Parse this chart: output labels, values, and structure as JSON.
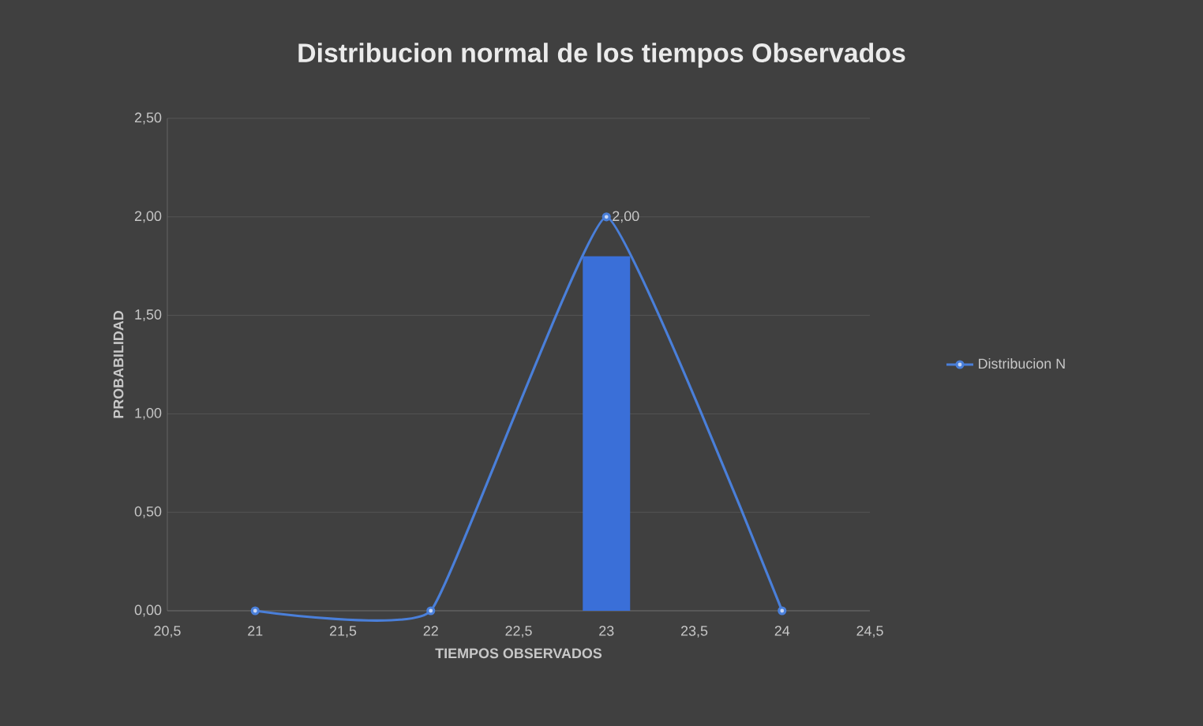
{
  "chart_data": {
    "type": "line",
    "title": "Distribucion normal de los tiempos Observados",
    "xlabel": "TIEMPOS  OBSERVADOS",
    "ylabel": "PROBABILIDAD",
    "x": [
      21,
      22,
      23,
      24
    ],
    "series": [
      {
        "type": "bar",
        "color": "#3a6fd8",
        "x": [
          23
        ],
        "values": [
          1.8
        ]
      },
      {
        "name": "Distribucion N",
        "color": "#4a7fd9",
        "values": [
          0,
          0,
          2,
          0
        ],
        "value_labels": [
          null,
          null,
          "2,00",
          null
        ],
        "marker": "circle"
      }
    ],
    "xlim": [
      20.5,
      24.5
    ],
    "xticks": [
      {
        "value": 20.5,
        "label": "20,5"
      },
      21,
      {
        "value": 21.5,
        "label": "21,5"
      },
      22,
      {
        "value": 22.5,
        "label": "22,5"
      },
      23,
      {
        "value": 23.5,
        "label": "23,5"
      },
      24,
      {
        "value": 24.5,
        "label": "24,5"
      }
    ],
    "ylim": [
      0,
      2.5
    ],
    "yticks": [
      {
        "value": 0,
        "label": "0,00"
      },
      {
        "value": 0.5,
        "label": "0,50"
      },
      {
        "value": 1,
        "label": "1,00"
      },
      {
        "value": 1.5,
        "label": "1,50"
      },
      {
        "value": 2,
        "label": "2,00"
      },
      {
        "value": 2.5,
        "label": "2,50"
      }
    ],
    "grid": "y",
    "legend": "right",
    "line_style": "solid"
  }
}
